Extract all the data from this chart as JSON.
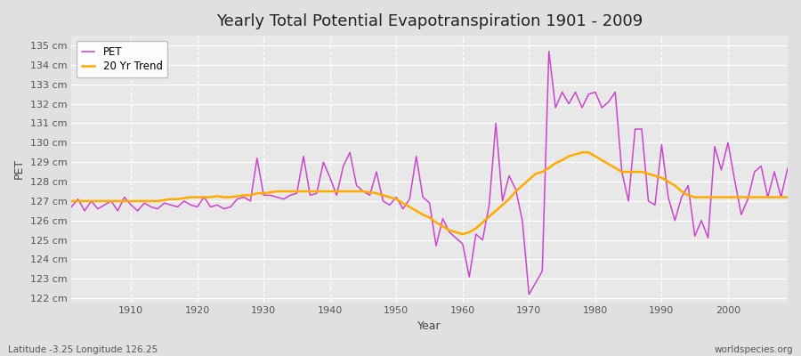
{
  "title": "Yearly Total Potential Evapotranspiration 1901 - 2009",
  "xlabel": "Year",
  "ylabel": "PET",
  "bottom_left_label": "Latitude -3.25 Longitude 126.25",
  "bottom_right_label": "worldspecies.org",
  "background_color": "#e0e0e0",
  "plot_bg_color": "#e8e8e8",
  "pet_color": "#cc44cc",
  "trend_color": "#ffaa00",
  "ylim": [
    121.8,
    135.5
  ],
  "ytick_values": [
    122,
    123,
    124,
    125,
    126,
    127,
    128,
    129,
    130,
    131,
    132,
    133,
    134,
    135
  ],
  "years": [
    1901,
    1902,
    1903,
    1904,
    1905,
    1906,
    1907,
    1908,
    1909,
    1910,
    1911,
    1912,
    1913,
    1914,
    1915,
    1916,
    1917,
    1918,
    1919,
    1920,
    1921,
    1922,
    1923,
    1924,
    1925,
    1926,
    1927,
    1928,
    1929,
    1930,
    1931,
    1932,
    1933,
    1934,
    1935,
    1936,
    1937,
    1938,
    1939,
    1940,
    1941,
    1942,
    1943,
    1944,
    1945,
    1946,
    1947,
    1948,
    1949,
    1950,
    1951,
    1952,
    1953,
    1954,
    1955,
    1956,
    1957,
    1958,
    1959,
    1960,
    1961,
    1962,
    1963,
    1964,
    1965,
    1966,
    1967,
    1968,
    1969,
    1970,
    1971,
    1972,
    1973,
    1974,
    1975,
    1976,
    1977,
    1978,
    1979,
    1980,
    1981,
    1982,
    1983,
    1984,
    1985,
    1986,
    1987,
    1988,
    1989,
    1990,
    1991,
    1992,
    1993,
    1994,
    1995,
    1996,
    1997,
    1998,
    1999,
    2000,
    2001,
    2002,
    2003,
    2004,
    2005,
    2006,
    2007,
    2008,
    2009
  ],
  "pet_values": [
    126.7,
    127.1,
    126.5,
    127.0,
    126.6,
    126.8,
    127.0,
    126.5,
    127.2,
    126.8,
    126.5,
    126.9,
    126.7,
    126.6,
    126.9,
    126.8,
    126.7,
    127.0,
    126.8,
    126.7,
    127.2,
    126.7,
    126.8,
    126.6,
    126.7,
    127.1,
    127.2,
    127.0,
    129.2,
    127.3,
    127.3,
    127.2,
    127.1,
    127.3,
    127.4,
    129.3,
    127.3,
    127.4,
    129.0,
    128.2,
    127.3,
    128.8,
    129.5,
    127.8,
    127.5,
    127.3,
    128.5,
    127.0,
    126.8,
    127.2,
    126.6,
    127.1,
    129.3,
    127.2,
    126.9,
    124.7,
    126.1,
    125.4,
    125.1,
    124.8,
    123.1,
    125.3,
    125.0,
    126.8,
    131.0,
    127.0,
    128.3,
    127.6,
    126.0,
    122.2,
    122.8,
    123.4,
    134.7,
    131.8,
    132.6,
    132.0,
    132.6,
    131.8,
    132.5,
    132.6,
    131.8,
    132.1,
    132.6,
    128.5,
    127.0,
    130.7,
    130.7,
    127.0,
    126.8,
    129.9,
    127.2,
    126.0,
    127.2,
    127.8,
    125.2,
    126.0,
    125.1,
    129.8,
    128.6,
    130.0,
    128.1,
    126.3,
    127.1,
    128.5,
    128.8,
    127.2,
    128.5,
    127.2,
    128.7
  ],
  "trend_values": [
    127.0,
    127.0,
    127.0,
    127.0,
    127.0,
    127.0,
    127.0,
    127.0,
    127.0,
    127.0,
    127.0,
    127.0,
    127.0,
    127.0,
    127.05,
    127.1,
    127.1,
    127.15,
    127.2,
    127.2,
    127.2,
    127.2,
    127.25,
    127.2,
    127.2,
    127.25,
    127.3,
    127.3,
    127.4,
    127.4,
    127.45,
    127.5,
    127.5,
    127.5,
    127.5,
    127.5,
    127.5,
    127.5,
    127.5,
    127.5,
    127.5,
    127.5,
    127.5,
    127.5,
    127.5,
    127.45,
    127.4,
    127.3,
    127.2,
    127.1,
    126.9,
    126.7,
    126.5,
    126.3,
    126.15,
    125.9,
    125.7,
    125.5,
    125.4,
    125.3,
    125.4,
    125.6,
    125.9,
    126.2,
    126.5,
    126.8,
    127.1,
    127.5,
    127.8,
    128.1,
    128.4,
    128.5,
    128.7,
    128.95,
    129.1,
    129.3,
    129.4,
    129.5,
    129.5,
    129.3,
    129.1,
    128.9,
    128.7,
    128.5,
    128.5,
    128.5,
    128.5,
    128.4,
    128.3,
    128.2,
    128.0,
    127.8,
    127.5,
    127.3,
    127.2,
    127.2,
    127.2,
    127.2,
    127.2,
    127.2,
    127.2,
    127.2,
    127.2,
    127.2,
    127.2,
    127.2,
    127.2,
    127.2,
    127.2
  ],
  "legend_pet_label": "PET",
  "legend_trend_label": "20 Yr Trend",
  "xtick_positions": [
    1910,
    1920,
    1930,
    1940,
    1950,
    1960,
    1970,
    1980,
    1990,
    2000
  ],
  "title_fontsize": 13,
  "axis_fontsize": 9,
  "tick_fontsize": 8,
  "legend_fontsize": 8.5
}
